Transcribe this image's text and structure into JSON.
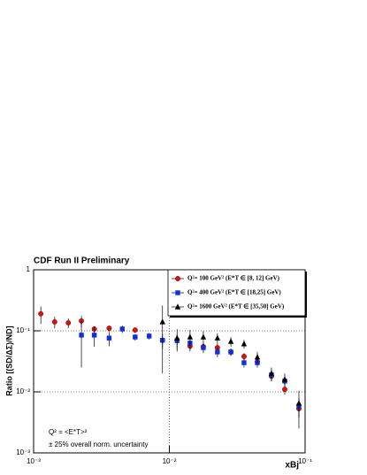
{
  "chart_data": {
    "type": "scatter",
    "title": "CDF Run II Preliminary",
    "y_label": "Ratio [(SD/ΔΣ)/ND]",
    "x_label": "xBj",
    "annotations": [
      "Q² = <E*T>²",
      "± 25% overall norm. uncertainty"
    ],
    "log_x": true,
    "log_y": true,
    "grid": true,
    "legend_position": "upper right",
    "xlim": [
      0.001,
      0.1
    ],
    "xticks": [
      {
        "value": 0.001,
        "label": "10⁻³"
      },
      {
        "value": 0.01,
        "label": "10⁻²"
      },
      {
        "value": 0.1,
        "label": "10⁻¹"
      }
    ],
    "ylim": [
      0.001,
      1
    ],
    "yticks": [
      {
        "value": 0.001,
        "label": "10⁻³"
      },
      {
        "value": 0.01,
        "label": "10⁻²"
      },
      {
        "value": 0.1,
        "label": "10⁻¹"
      },
      1
    ],
    "series": [
      {
        "name": "Q²= 100 GeV² (E*T ∈ [8, 12] GeV)",
        "color": "#e01010",
        "marker": "circle",
        "x": [
          0.00113,
          0.00143,
          0.0018,
          0.00225,
          0.0028,
          0.0036,
          0.0056,
          0.0089,
          0.0114,
          0.0142,
          0.0178,
          0.0226,
          0.0284,
          0.0355,
          0.0445,
          0.0565,
          0.0708,
          0.09
        ],
        "values": [
          0.19,
          0.14,
          0.135,
          0.145,
          0.107,
          0.11,
          0.103,
          0.07,
          0.07,
          0.056,
          0.055,
          0.053,
          0.045,
          0.038,
          0.031,
          0.018,
          0.011,
          0.0053
        ],
        "errors": [
          0.06,
          0.03,
          0.025,
          0.03,
          0.012,
          0.012,
          0.01,
          0.015,
          0.015,
          0.01,
          0.008,
          0.008,
          0.006,
          0.005,
          0.004,
          0.003,
          0.002,
          0.0015
        ]
      },
      {
        "name": "Q²= 400 GeV² (E*T ∈ [18,25] GeV)",
        "color": "#1030e0",
        "marker": "square",
        "x": [
          0.00225,
          0.0028,
          0.0036,
          0.0045,
          0.0056,
          0.0071,
          0.0089,
          0.0114,
          0.0142,
          0.0178,
          0.0226,
          0.0284,
          0.0355,
          0.0445,
          0.0565,
          0.0708,
          0.09
        ],
        "values": [
          0.085,
          0.085,
          0.076,
          0.107,
          0.079,
          0.082,
          0.07,
          0.069,
          0.063,
          0.053,
          0.045,
          0.045,
          0.03,
          0.03,
          0.019,
          0.015,
          0.0058
        ],
        "errors": [
          0.06,
          0.03,
          0.02,
          0.015,
          0.01,
          0.01,
          0.02,
          0.02,
          0.015,
          0.01,
          0.008,
          0.006,
          0.005,
          0.005,
          0.004,
          0.003,
          0.002
        ]
      },
      {
        "name": "Q²= 1600 GeV² (E*T ∈ [35,50] GeV)",
        "color": "#000000",
        "marker": "triangle",
        "x": [
          0.0089,
          0.0114,
          0.0142,
          0.0178,
          0.0226,
          0.0284,
          0.0355,
          0.0445,
          0.0565,
          0.0708,
          0.09
        ],
        "values": [
          0.14,
          0.076,
          0.079,
          0.079,
          0.076,
          0.067,
          0.061,
          0.037,
          0.02,
          0.016,
          0.0065
        ],
        "errors": [
          0.12,
          0.03,
          0.025,
          0.02,
          0.015,
          0.012,
          0.01,
          0.008,
          0.005,
          0.004,
          0.004
        ]
      }
    ]
  }
}
